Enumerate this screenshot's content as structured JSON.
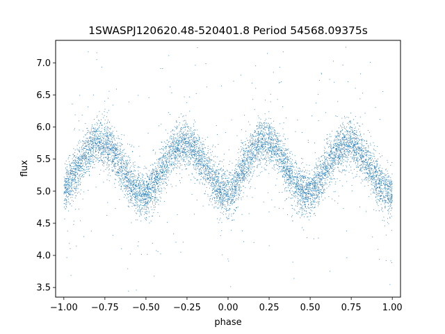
{
  "chart_data": {
    "type": "scatter",
    "title": "1SWASPJ120620.48-520401.8 Period 54568.09375s",
    "xlabel": "phase",
    "ylabel": "flux",
    "xlim": [
      -1.05,
      1.05
    ],
    "ylim": [
      3.35,
      7.35
    ],
    "x_ticks": [
      -1.0,
      -0.75,
      -0.5,
      -0.25,
      0.0,
      0.25,
      0.5,
      0.75,
      1.0
    ],
    "x_tick_labels": [
      "−1.00",
      "−0.75",
      "−0.50",
      "−0.25",
      "0.00",
      "0.25",
      "0.50",
      "0.75",
      "1.00"
    ],
    "y_ticks": [
      3.5,
      4.0,
      4.5,
      5.0,
      5.5,
      6.0,
      6.5,
      7.0
    ],
    "y_tick_labels": [
      "3.5",
      "4.0",
      "4.5",
      "5.0",
      "5.5",
      "6.0",
      "6.5",
      "7.0"
    ],
    "grid": false,
    "legend": "none",
    "marker_color": "#1f77b4",
    "series": [
      {
        "x": [
          -1.0,
          -0.95,
          -0.9,
          -0.85,
          -0.8,
          -0.75,
          -0.7,
          -0.65,
          -0.6,
          -0.55,
          -0.5,
          -0.45,
          -0.4,
          -0.35,
          -0.3,
          -0.25,
          -0.2,
          -0.15,
          -0.1,
          -0.05,
          0.0,
          0.05,
          0.1,
          0.15,
          0.2,
          0.25,
          0.3,
          0.35,
          0.4,
          0.45,
          0.5,
          0.55,
          0.6,
          0.65,
          0.7,
          0.75,
          0.8,
          0.85,
          0.9,
          0.95,
          1.0
        ],
        "y": [
          5.0,
          5.2,
          5.45,
          5.65,
          5.78,
          5.75,
          5.6,
          5.4,
          5.15,
          4.98,
          4.95,
          5.1,
          5.35,
          5.58,
          5.72,
          5.75,
          5.65,
          5.45,
          5.2,
          5.02,
          4.93,
          5.1,
          5.38,
          5.62,
          5.78,
          5.78,
          5.62,
          5.4,
          5.15,
          4.98,
          4.95,
          5.12,
          5.38,
          5.6,
          5.72,
          5.75,
          5.65,
          5.45,
          5.2,
          5.02,
          4.95
        ]
      }
    ]
  }
}
